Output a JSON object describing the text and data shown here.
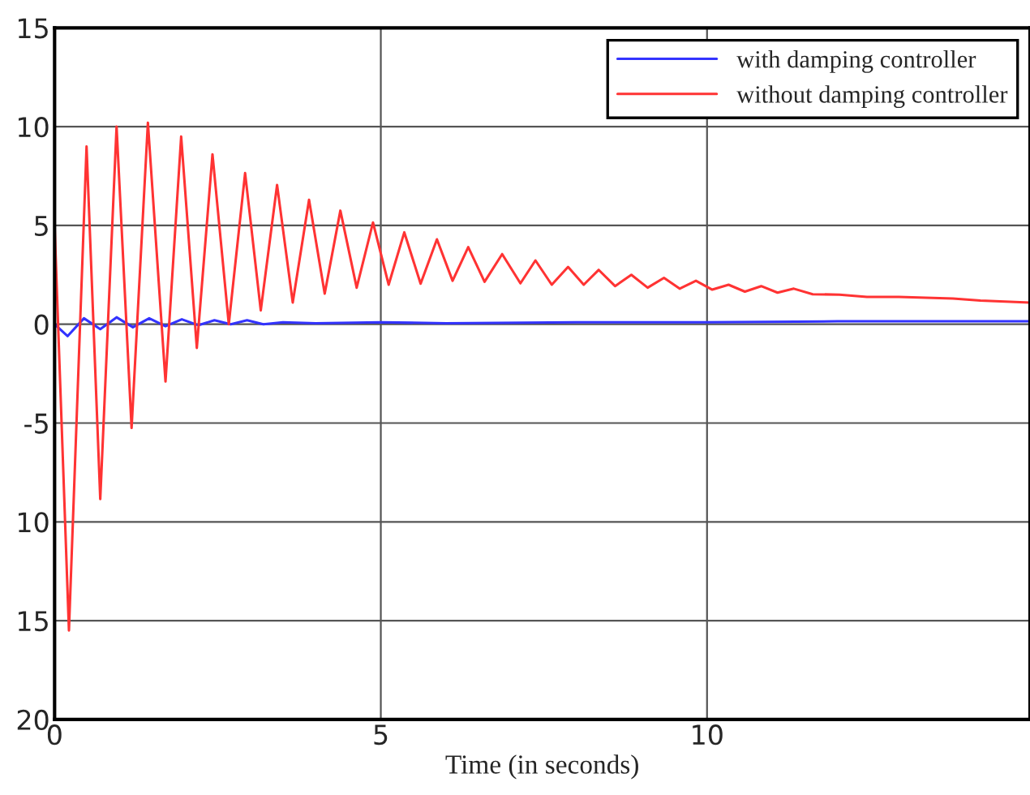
{
  "chart_data": {
    "type": "line",
    "xlabel": "Time (in seconds)",
    "xlim": [
      0,
      14.95
    ],
    "xticks": [
      0,
      5,
      10
    ],
    "ylim": [
      -20,
      15
    ],
    "yticks": [
      {
        "value": -20,
        "label": "20"
      },
      {
        "value": -15,
        "label": "15"
      },
      {
        "value": -10,
        "label": "10"
      },
      {
        "value": -5,
        "label": "-5"
      },
      0,
      5,
      10,
      15
    ],
    "grid": true,
    "legend": "top right",
    "line_style": "solid",
    "marker": "none",
    "series": [
      {
        "name": "with damping controller",
        "color": "#3333ff",
        "x": [
          0,
          0.2,
          0.45,
          0.7,
          0.95,
          1.2,
          1.45,
          1.7,
          1.95,
          2.2,
          2.45,
          2.7,
          2.95,
          3.2,
          3.5,
          4.0,
          5.0,
          6.0,
          8.0,
          10.0,
          12.0,
          14.95
        ],
        "values": [
          0,
          -0.6,
          0.3,
          -0.25,
          0.35,
          -0.15,
          0.3,
          -0.1,
          0.25,
          -0.05,
          0.2,
          0,
          0.2,
          0,
          0.1,
          0.05,
          0.1,
          0.05,
          0.1,
          0.1,
          0.15,
          0.15
        ]
      },
      {
        "name": "without damping controller",
        "color": "#ff3333",
        "x": [
          0,
          0.22,
          0.49,
          0.7,
          0.95,
          1.18,
          1.43,
          1.7,
          1.94,
          2.18,
          2.42,
          2.67,
          2.92,
          3.16,
          3.41,
          3.65,
          3.9,
          4.14,
          4.38,
          4.63,
          4.88,
          5.12,
          5.36,
          5.61,
          5.86,
          6.1,
          6.34,
          6.59,
          6.86,
          7.14,
          7.37,
          7.62,
          7.87,
          8.11,
          8.34,
          8.59,
          8.84,
          9.09,
          9.34,
          9.58,
          9.83,
          10.08,
          10.33,
          10.58,
          10.83,
          11.08,
          11.33,
          11.62,
          12.03,
          12.45,
          12.94,
          13.77,
          14.19,
          14.95
        ],
        "values": [
          5.0,
          -15.5,
          9.0,
          -8.85,
          10.0,
          -5.25,
          10.2,
          -2.9,
          9.5,
          -1.2,
          8.6,
          0,
          7.65,
          0.7,
          7.05,
          1.1,
          6.3,
          1.55,
          5.75,
          1.85,
          5.15,
          2.0,
          4.65,
          2.05,
          4.3,
          2.2,
          3.9,
          2.15,
          3.55,
          2.07,
          3.23,
          2.0,
          2.9,
          2.0,
          2.75,
          1.93,
          2.5,
          1.85,
          2.35,
          1.8,
          2.2,
          1.75,
          2.0,
          1.65,
          1.93,
          1.6,
          1.8,
          1.52,
          1.5,
          1.38,
          1.38,
          1.3,
          1.2,
          1.1
        ]
      }
    ]
  }
}
